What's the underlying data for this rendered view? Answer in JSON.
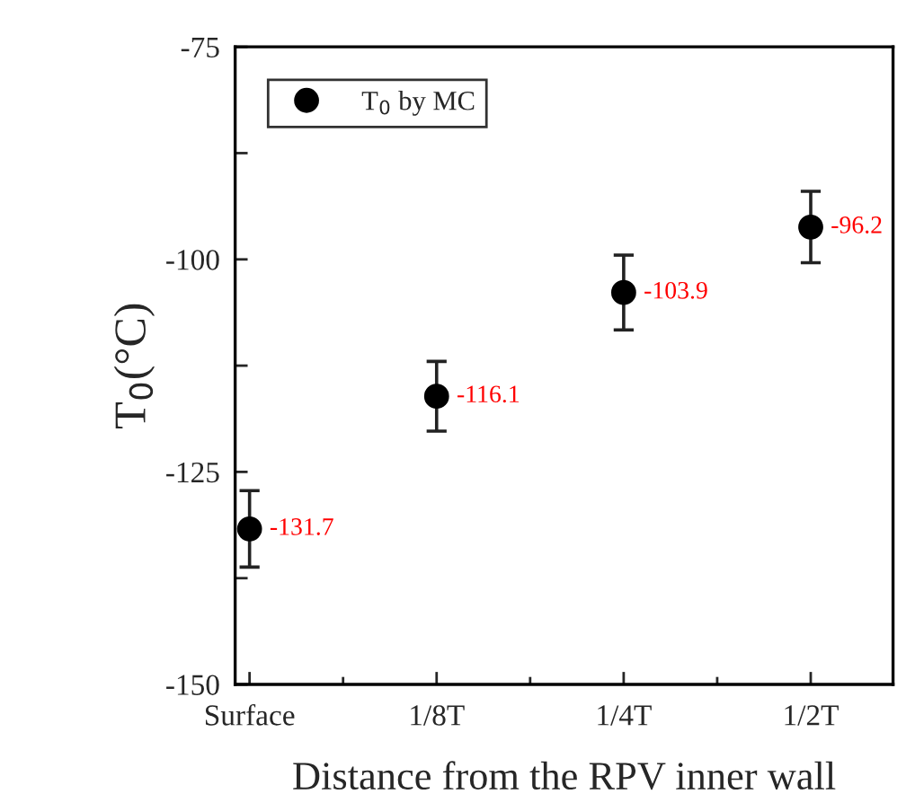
{
  "chart_data": {
    "type": "scatter",
    "xlabel": "Distance from the RPV inner wall",
    "ylabel": "T$_{0}$(°C)",
    "categories": [
      "Surface",
      "1/8T",
      "1/4T",
      "1/2T"
    ],
    "series": [
      {
        "name": "T$_{0}$ by MC",
        "color": "#000000",
        "values": [
          -131.7,
          -116.1,
          -103.9,
          -96.2
        ],
        "errors": [
          4.5,
          4.1,
          4.4,
          4.2
        ]
      }
    ],
    "ylim": [
      -150,
      -75
    ],
    "yticks": [
      -150,
      {
        "value": -137.5,
        "label": null
      },
      -125,
      {
        "value": -112.5,
        "label": null
      },
      -100,
      {
        "value": -87.5,
        "label": null
      },
      -75
    ],
    "data_labels": true,
    "marker": "circle",
    "legend": "top left",
    "grid": false
  }
}
